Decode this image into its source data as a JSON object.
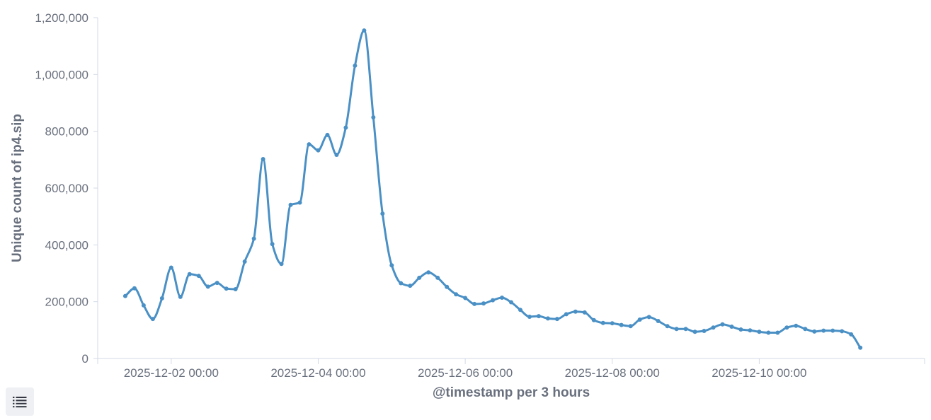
{
  "chart_data": {
    "type": "line",
    "xlabel": "@timestamp per 3 hours",
    "ylabel": "Unique count of ip4.sip",
    "ylim": [
      0,
      1200000
    ],
    "yticks": [
      0,
      200000,
      400000,
      600000,
      800000,
      1000000,
      1200000
    ],
    "ytick_labels": [
      "0",
      "200,000",
      "400,000",
      "600,000",
      "800,000",
      "1,000,000",
      "1,200,000"
    ],
    "x_start": "2025-12-01 09:00",
    "x_step_hours": 3,
    "xlim": [
      "2025-12-01 00:00",
      "2025-12-12 06:00"
    ],
    "xticks": [
      "2025-12-02 00:00",
      "2025-12-04 00:00",
      "2025-12-06 00:00",
      "2025-12-08 00:00",
      "2025-12-10 00:00"
    ],
    "grid": false,
    "legend": "hidden",
    "series": [
      {
        "color": "#4a90c5",
        "values": [
          220000,
          247000,
          187000,
          139000,
          212000,
          320000,
          217000,
          297000,
          291000,
          253000,
          266000,
          246000,
          244000,
          341000,
          422000,
          702000,
          403000,
          333000,
          541000,
          549000,
          754000,
          733000,
          787000,
          717000,
          813000,
          1031000,
          1155000,
          849000,
          510000,
          328000,
          265000,
          256000,
          284000,
          303000,
          284000,
          252000,
          226000,
          213000,
          192000,
          194000,
          205000,
          214000,
          198000,
          171000,
          147000,
          149000,
          141000,
          139000,
          156000,
          165000,
          162000,
          135000,
          125000,
          124000,
          118000,
          114000,
          137000,
          146000,
          132000,
          114000,
          104000,
          104000,
          94000,
          97000,
          109000,
          120000,
          112000,
          102000,
          99000,
          94000,
          91000,
          91000,
          109000,
          115000,
          104000,
          95000,
          98000,
          98000,
          96000,
          85000,
          38000
        ]
      }
    ]
  },
  "legend_toggle": {
    "icon": "list-icon"
  }
}
